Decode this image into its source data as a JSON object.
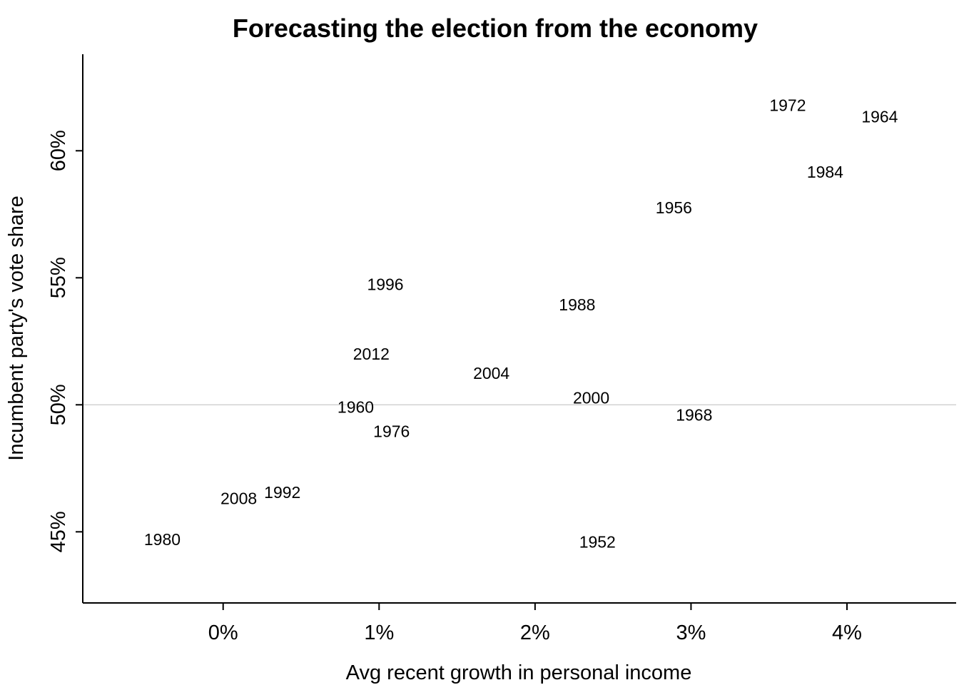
{
  "chart_data": {
    "type": "scatter",
    "title": "Forecasting the election from the economy",
    "xlabel": "Avg recent growth in personal income",
    "ylabel": "Incumbent party's vote share",
    "xlim": [
      -0.9,
      4.7
    ],
    "ylim": [
      42.2,
      63.8
    ],
    "xticks": [
      0,
      1,
      2,
      3,
      4
    ],
    "xtick_labels": [
      "0%",
      "1%",
      "2%",
      "3%",
      "4%"
    ],
    "yticks": [
      45,
      50,
      55,
      60
    ],
    "ytick_labels": [
      "45%",
      "50%",
      "55%",
      "60%"
    ],
    "reference_line_y": 50,
    "grid": false,
    "marker": "year label",
    "points": [
      {
        "label": "1952",
        "x": 2.4,
        "y": 44.6
      },
      {
        "label": "1956",
        "x": 2.89,
        "y": 57.76
      },
      {
        "label": "1960",
        "x": 0.85,
        "y": 49.91
      },
      {
        "label": "1964",
        "x": 4.21,
        "y": 61.34
      },
      {
        "label": "1968",
        "x": 3.02,
        "y": 49.6
      },
      {
        "label": "1972",
        "x": 3.62,
        "y": 61.79
      },
      {
        "label": "1976",
        "x": 1.08,
        "y": 48.95
      },
      {
        "label": "1980",
        "x": -0.39,
        "y": 44.7
      },
      {
        "label": "1984",
        "x": 3.86,
        "y": 59.17
      },
      {
        "label": "1988",
        "x": 2.27,
        "y": 53.94
      },
      {
        "label": "1992",
        "x": 0.38,
        "y": 46.55
      },
      {
        "label": "1996",
        "x": 1.04,
        "y": 54.74
      },
      {
        "label": "2000",
        "x": 2.36,
        "y": 50.27
      },
      {
        "label": "2004",
        "x": 1.72,
        "y": 51.24
      },
      {
        "label": "2008",
        "x": 0.1,
        "y": 46.32
      },
      {
        "label": "2012",
        "x": 0.95,
        "y": 52.0
      }
    ]
  }
}
